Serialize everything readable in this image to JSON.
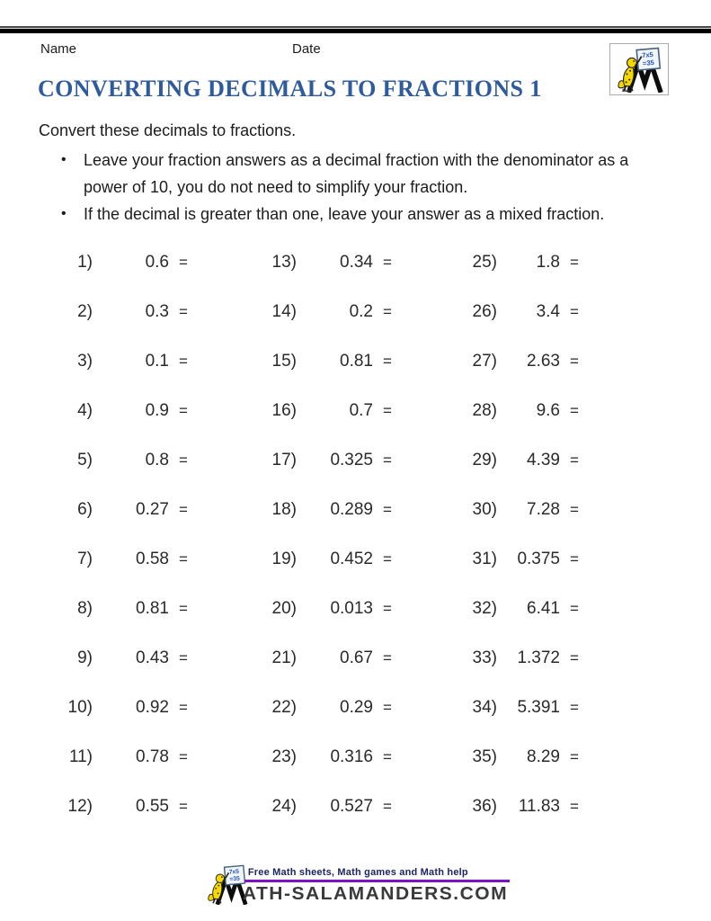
{
  "header": {
    "name_label": "Name",
    "date_label": "Date"
  },
  "logo": {
    "board_line1": "7x5",
    "board_line2": "=35"
  },
  "title": {
    "text": "CONVERTING DECIMALS TO FRACTIONS 1",
    "color": "#2e5b9c"
  },
  "instructions": {
    "intro": "Convert these decimals to fractions.",
    "bullet_char": "•",
    "bullets": [
      "Leave your fraction answers as a decimal fraction with the denominator as a power of 10, you do not need to simplify your fraction.",
      "If the decimal is greater than one, leave your answer as a mixed fraction."
    ]
  },
  "problems": {
    "equals_sign": "=",
    "columns": [
      {
        "items": [
          {
            "label": "1)",
            "value": "0.6"
          },
          {
            "label": "2)",
            "value": "0.3"
          },
          {
            "label": "3)",
            "value": "0.1"
          },
          {
            "label": "4)",
            "value": "0.9"
          },
          {
            "label": "5)",
            "value": "0.8"
          },
          {
            "label": "6)",
            "value": "0.27"
          },
          {
            "label": "7)",
            "value": "0.58"
          },
          {
            "label": "8)",
            "value": "0.81"
          },
          {
            "label": "9)",
            "value": "0.43"
          },
          {
            "label": "10)",
            "value": "0.92"
          },
          {
            "label": "11)",
            "value": "0.78"
          },
          {
            "label": "12)",
            "value": "0.55"
          }
        ]
      },
      {
        "items": [
          {
            "label": "13)",
            "value": "0.34"
          },
          {
            "label": "14)",
            "value": "0.2"
          },
          {
            "label": "15)",
            "value": "0.81"
          },
          {
            "label": "16)",
            "value": "0.7"
          },
          {
            "label": "17)",
            "value": "0.325"
          },
          {
            "label": "18)",
            "value": "0.289"
          },
          {
            "label": "19)",
            "value": "0.452"
          },
          {
            "label": "20)",
            "value": "0.013"
          },
          {
            "label": "21)",
            "value": "0.67"
          },
          {
            "label": "22)",
            "value": "0.29"
          },
          {
            "label": "23)",
            "value": "0.316"
          },
          {
            "label": "24)",
            "value": "0.527"
          }
        ]
      },
      {
        "items": [
          {
            "label": "25)",
            "value": "1.8"
          },
          {
            "label": "26)",
            "value": "3.4"
          },
          {
            "label": "27)",
            "value": "2.63"
          },
          {
            "label": "28)",
            "value": "9.6"
          },
          {
            "label": "29)",
            "value": "4.39"
          },
          {
            "label": "30)",
            "value": "7.28"
          },
          {
            "label": "31)",
            "value": "0.375"
          },
          {
            "label": "32)",
            "value": "6.41"
          },
          {
            "label": "33)",
            "value": "1.372"
          },
          {
            "label": "34)",
            "value": "5.391"
          },
          {
            "label": "35)",
            "value": "8.29"
          },
          {
            "label": "36)",
            "value": "11.83"
          }
        ]
      }
    ]
  },
  "footer": {
    "tagline": "Free Math sheets, Math games and Math help",
    "brand_text": "ATH-SALAMANDERS.COM",
    "line_color": "#7d12c4"
  },
  "colors": {
    "title_blue": "#2e5b9c",
    "topbar_black": "#000000",
    "salamander_yellow": "#f5d800",
    "purple_accent": "#7d12c4",
    "tagline_navy": "#1c2566"
  }
}
